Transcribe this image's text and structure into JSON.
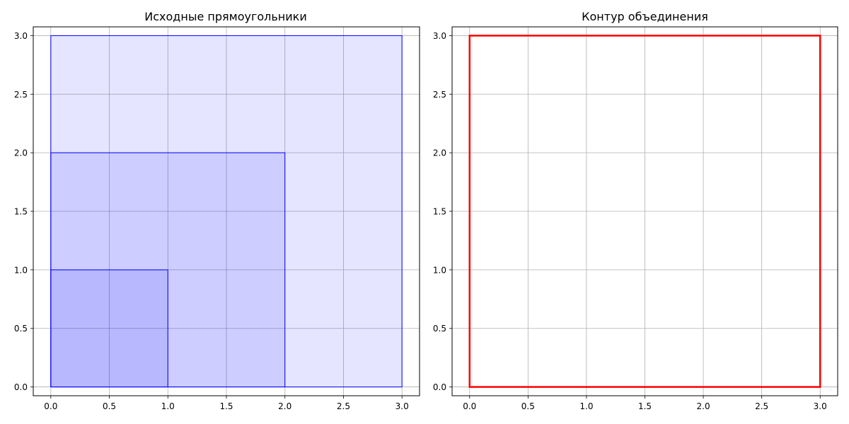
{
  "chart_data": [
    {
      "type": "polygon",
      "title": "Исходные прямоугольники",
      "xlabel": "",
      "ylabel": "",
      "xlim": [
        -0.15,
        3.15
      ],
      "ylim": [
        -0.075,
        3.075
      ],
      "xticks": [
        0.0,
        0.5,
        1.0,
        1.5,
        2.0,
        2.5,
        3.0
      ],
      "xtick_labels": [
        "0.0",
        "0.5",
        "1.0",
        "1.5",
        "2.0",
        "2.5",
        "3.0"
      ],
      "yticks": [
        0.0,
        0.5,
        1.0,
        1.5,
        2.0,
        2.5,
        3.0
      ],
      "ytick_labels": [
        "0.0",
        "0.5",
        "1.0",
        "1.5",
        "2.0",
        "2.5",
        "3.0"
      ],
      "grid": true,
      "shapes": [
        {
          "x0": 0,
          "y0": 0,
          "x1": 3,
          "y1": 3,
          "fill": "#0000ff",
          "fill_alpha": 0.1,
          "stroke": "#0000ff",
          "stroke_width": 1
        },
        {
          "x0": 0,
          "y0": 0,
          "x1": 2,
          "y1": 2,
          "fill": "#0000ff",
          "fill_alpha": 0.1,
          "stroke": "#0000ff",
          "stroke_width": 1
        },
        {
          "x0": 0,
          "y0": 0,
          "x1": 1,
          "y1": 1,
          "fill": "#0000ff",
          "fill_alpha": 0.1,
          "stroke": "#0000ff",
          "stroke_width": 1
        }
      ]
    },
    {
      "type": "polygon",
      "title": "Контур объединения",
      "xlabel": "",
      "ylabel": "",
      "xlim": [
        -0.15,
        3.15
      ],
      "ylim": [
        -0.075,
        3.075
      ],
      "xticks": [
        0.0,
        0.5,
        1.0,
        1.5,
        2.0,
        2.5,
        3.0
      ],
      "xtick_labels": [
        "0.0",
        "0.5",
        "1.0",
        "1.5",
        "2.0",
        "2.5",
        "3.0"
      ],
      "yticks": [
        0.0,
        0.5,
        1.0,
        1.5,
        2.0,
        2.5,
        3.0
      ],
      "ytick_labels": [
        "0.0",
        "0.5",
        "1.0",
        "1.5",
        "2.0",
        "2.5",
        "3.0"
      ],
      "grid": true,
      "shapes": [
        {
          "x0": 0,
          "y0": 0,
          "x1": 3,
          "y1": 3,
          "fill": "none",
          "fill_alpha": 0,
          "stroke": "#ff0000",
          "stroke_width": 2.5
        }
      ]
    }
  ]
}
